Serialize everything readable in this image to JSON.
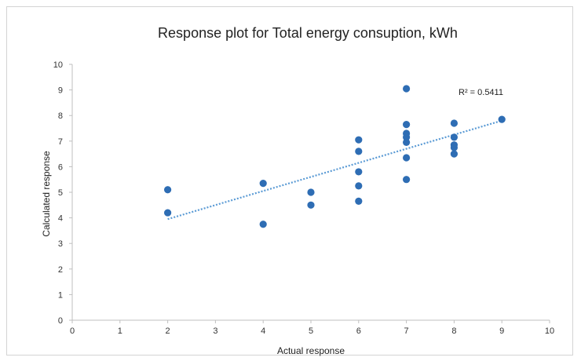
{
  "chart_data": {
    "type": "scatter",
    "title": "Response plot for Total energy consuption, kWh",
    "xlabel": "Actual response",
    "ylabel": "Calculated response",
    "xlim": [
      0,
      10
    ],
    "ylim": [
      0,
      10
    ],
    "x_ticks": [
      "0",
      "1",
      "2",
      "3",
      "4",
      "5",
      "6",
      "7",
      "8",
      "9",
      "10"
    ],
    "y_ticks": [
      "0",
      "1",
      "2",
      "3",
      "4",
      "5",
      "6",
      "7",
      "8",
      "9",
      "10"
    ],
    "grid": false,
    "series": [
      {
        "points": [
          {
            "x": 2,
            "y": 5.1
          },
          {
            "x": 2,
            "y": 4.2
          },
          {
            "x": 4,
            "y": 5.35
          },
          {
            "x": 4,
            "y": 3.75
          },
          {
            "x": 5,
            "y": 5.0
          },
          {
            "x": 5,
            "y": 4.5
          },
          {
            "x": 6,
            "y": 7.05
          },
          {
            "x": 6,
            "y": 6.6
          },
          {
            "x": 6,
            "y": 5.8
          },
          {
            "x": 6,
            "y": 5.25
          },
          {
            "x": 6,
            "y": 4.65
          },
          {
            "x": 7,
            "y": 9.05
          },
          {
            "x": 7,
            "y": 7.65
          },
          {
            "x": 7,
            "y": 7.3
          },
          {
            "x": 7,
            "y": 7.15
          },
          {
            "x": 7,
            "y": 6.95
          },
          {
            "x": 7,
            "y": 6.35
          },
          {
            "x": 7,
            "y": 5.5
          },
          {
            "x": 8,
            "y": 7.7
          },
          {
            "x": 8,
            "y": 7.15
          },
          {
            "x": 8,
            "y": 6.85
          },
          {
            "x": 8,
            "y": 6.75
          },
          {
            "x": 8,
            "y": 6.5
          },
          {
            "x": 9,
            "y": 7.85
          }
        ],
        "color": "#2e6db4"
      }
    ],
    "trendline": {
      "style": "dotted",
      "color": "#5b9bd5",
      "from": {
        "x": 2,
        "y": 3.95
      },
      "to": {
        "x": 9,
        "y": 7.8
      },
      "r2_label": "R² = 0.5411"
    }
  }
}
